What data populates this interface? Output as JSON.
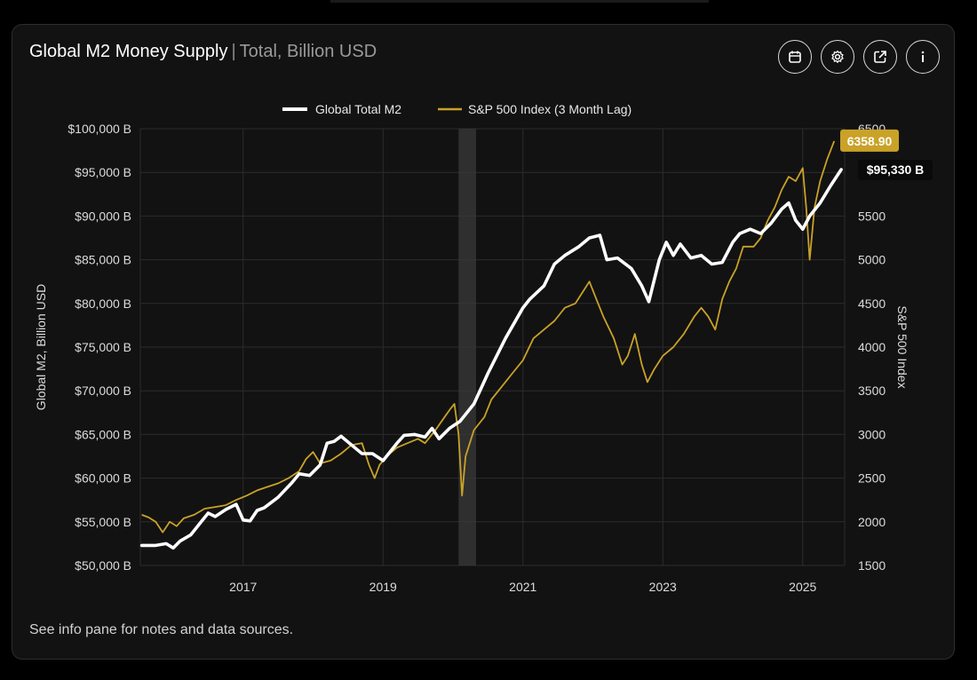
{
  "header": {
    "title": "Global M2 Money Supply",
    "separator": "|",
    "subtitle": "Total, Billion USD"
  },
  "toolbar": {
    "icons": [
      "calendar-icon",
      "gear-icon",
      "external-link-icon",
      "info-icon"
    ]
  },
  "footer": {
    "note": "See info pane for notes and data sources."
  },
  "colors": {
    "m2": "#ffffff",
    "spx": "#c9a227",
    "grid": "#2c2c2c",
    "shade": "#3a3a3a"
  },
  "chart_data": {
    "type": "line",
    "title": "Global M2 Money Supply",
    "subtitle": "Total, Billion USD",
    "ylabel": "Global M2, Billion USD",
    "y2label": "S&P 500 Index",
    "ylim": [
      50000,
      100000
    ],
    "y2lim": [
      1500,
      6500
    ],
    "xlim": [
      2015.53,
      2025.6
    ],
    "legend_position": "top-center",
    "grid": true,
    "x_ticks": [
      {
        "value": 2017,
        "label": "2017"
      },
      {
        "value": 2019,
        "label": "2019"
      },
      {
        "value": 2021,
        "label": "2021"
      },
      {
        "value": 2023,
        "label": "2023"
      },
      {
        "value": 2025,
        "label": "2025"
      }
    ],
    "y_ticks": [
      {
        "value": 50000,
        "label": "$50,000 B"
      },
      {
        "value": 55000,
        "label": "$55,000 B"
      },
      {
        "value": 60000,
        "label": "$60,000 B"
      },
      {
        "value": 65000,
        "label": "$65,000 B"
      },
      {
        "value": 70000,
        "label": "$70,000 B"
      },
      {
        "value": 75000,
        "label": "$75,000 B"
      },
      {
        "value": 80000,
        "label": "$80,000 B"
      },
      {
        "value": 85000,
        "label": "$85,000 B"
      },
      {
        "value": 90000,
        "label": "$90,000 B"
      },
      {
        "value": 95000,
        "label": "$95,000 B"
      },
      {
        "value": 100000,
        "label": "$100,000 B"
      }
    ],
    "y2_ticks": [
      {
        "value": 1500,
        "label": "1500"
      },
      {
        "value": 2000,
        "label": "2000"
      },
      {
        "value": 2500,
        "label": "2500"
      },
      {
        "value": 3000,
        "label": "3000"
      },
      {
        "value": 3500,
        "label": "3500"
      },
      {
        "value": 4000,
        "label": "4000"
      },
      {
        "value": 4500,
        "label": "4500"
      },
      {
        "value": 5000,
        "label": "5000"
      },
      {
        "value": 5500,
        "label": "5500"
      },
      {
        "value": 6000,
        "label": "6000"
      },
      {
        "value": 6500,
        "label": "6500"
      }
    ],
    "shaded_region": {
      "x0": 2020.08,
      "x1": 2020.33
    },
    "series": [
      {
        "name": "Global Total M2",
        "axis": "left",
        "last_label": "$95,330 B",
        "points": [
          [
            2015.55,
            52300
          ],
          [
            2015.75,
            52300
          ],
          [
            2015.9,
            52500
          ],
          [
            2016.0,
            52000
          ],
          [
            2016.1,
            52800
          ],
          [
            2016.25,
            53500
          ],
          [
            2016.4,
            55000
          ],
          [
            2016.5,
            56000
          ],
          [
            2016.6,
            55600
          ],
          [
            2016.75,
            56400
          ],
          [
            2016.9,
            57000
          ],
          [
            2017.0,
            55200
          ],
          [
            2017.1,
            55100
          ],
          [
            2017.2,
            56300
          ],
          [
            2017.3,
            56600
          ],
          [
            2017.5,
            57800
          ],
          [
            2017.7,
            59500
          ],
          [
            2017.8,
            60500
          ],
          [
            2017.95,
            60300
          ],
          [
            2018.1,
            61500
          ],
          [
            2018.2,
            64000
          ],
          [
            2018.3,
            64200
          ],
          [
            2018.4,
            64800
          ],
          [
            2018.55,
            63800
          ],
          [
            2018.7,
            62800
          ],
          [
            2018.85,
            62800
          ],
          [
            2019.0,
            62000
          ],
          [
            2019.1,
            63000
          ],
          [
            2019.2,
            64000
          ],
          [
            2019.3,
            64900
          ],
          [
            2019.45,
            65000
          ],
          [
            2019.6,
            64700
          ],
          [
            2019.7,
            65700
          ],
          [
            2019.8,
            64500
          ],
          [
            2019.95,
            65700
          ],
          [
            2020.1,
            66500
          ],
          [
            2020.2,
            67500
          ],
          [
            2020.3,
            68500
          ],
          [
            2020.5,
            72000
          ],
          [
            2020.75,
            76000
          ],
          [
            2021.0,
            79500
          ],
          [
            2021.1,
            80500
          ],
          [
            2021.3,
            82000
          ],
          [
            2021.45,
            84500
          ],
          [
            2021.6,
            85500
          ],
          [
            2021.8,
            86500
          ],
          [
            2021.95,
            87500
          ],
          [
            2022.1,
            87800
          ],
          [
            2022.2,
            85000
          ],
          [
            2022.35,
            85200
          ],
          [
            2022.55,
            84000
          ],
          [
            2022.7,
            82000
          ],
          [
            2022.8,
            80200
          ],
          [
            2022.95,
            85000
          ],
          [
            2023.05,
            87000
          ],
          [
            2023.15,
            85500
          ],
          [
            2023.25,
            86800
          ],
          [
            2023.4,
            85200
          ],
          [
            2023.55,
            85500
          ],
          [
            2023.7,
            84500
          ],
          [
            2023.85,
            84700
          ],
          [
            2024.0,
            87000
          ],
          [
            2024.1,
            88000
          ],
          [
            2024.25,
            88500
          ],
          [
            2024.4,
            88000
          ],
          [
            2024.55,
            89200
          ],
          [
            2024.7,
            90800
          ],
          [
            2024.8,
            91500
          ],
          [
            2024.9,
            89500
          ],
          [
            2025.0,
            88500
          ],
          [
            2025.1,
            90000
          ],
          [
            2025.25,
            91500
          ],
          [
            2025.4,
            93500
          ],
          [
            2025.55,
            95330
          ]
        ]
      },
      {
        "name": "S&P 500 Index (3 Month Lag)",
        "axis": "right",
        "last_label": "6358.90",
        "points": [
          [
            2015.55,
            2080
          ],
          [
            2015.65,
            2050
          ],
          [
            2015.75,
            2000
          ],
          [
            2015.85,
            1880
          ],
          [
            2015.95,
            2000
          ],
          [
            2016.05,
            1950
          ],
          [
            2016.15,
            2040
          ],
          [
            2016.3,
            2080
          ],
          [
            2016.45,
            2150
          ],
          [
            2016.6,
            2170
          ],
          [
            2016.75,
            2190
          ],
          [
            2016.9,
            2250
          ],
          [
            2017.05,
            2300
          ],
          [
            2017.2,
            2360
          ],
          [
            2017.35,
            2400
          ],
          [
            2017.5,
            2440
          ],
          [
            2017.65,
            2500
          ],
          [
            2017.8,
            2580
          ],
          [
            2017.9,
            2720
          ],
          [
            2018.0,
            2800
          ],
          [
            2018.1,
            2670
          ],
          [
            2018.25,
            2700
          ],
          [
            2018.4,
            2780
          ],
          [
            2018.55,
            2880
          ],
          [
            2018.7,
            2900
          ],
          [
            2018.8,
            2650
          ],
          [
            2018.88,
            2500
          ],
          [
            2018.95,
            2650
          ],
          [
            2019.05,
            2750
          ],
          [
            2019.2,
            2850
          ],
          [
            2019.35,
            2900
          ],
          [
            2019.5,
            2950
          ],
          [
            2019.6,
            2900
          ],
          [
            2019.75,
            3050
          ],
          [
            2019.88,
            3200
          ],
          [
            2019.97,
            3300
          ],
          [
            2020.02,
            3350
          ],
          [
            2020.08,
            3000
          ],
          [
            2020.13,
            2300
          ],
          [
            2020.18,
            2750
          ],
          [
            2020.3,
            3050
          ],
          [
            2020.45,
            3200
          ],
          [
            2020.55,
            3400
          ],
          [
            2020.7,
            3550
          ],
          [
            2020.85,
            3700
          ],
          [
            2021.0,
            3850
          ],
          [
            2021.15,
            4100
          ],
          [
            2021.3,
            4200
          ],
          [
            2021.45,
            4300
          ],
          [
            2021.6,
            4450
          ],
          [
            2021.75,
            4500
          ],
          [
            2021.87,
            4650
          ],
          [
            2021.95,
            4750
          ],
          [
            2022.05,
            4550
          ],
          [
            2022.15,
            4350
          ],
          [
            2022.3,
            4100
          ],
          [
            2022.42,
            3800
          ],
          [
            2022.5,
            3900
          ],
          [
            2022.6,
            4150
          ],
          [
            2022.7,
            3800
          ],
          [
            2022.78,
            3600
          ],
          [
            2022.88,
            3750
          ],
          [
            2023.0,
            3900
          ],
          [
            2023.15,
            4000
          ],
          [
            2023.3,
            4150
          ],
          [
            2023.45,
            4350
          ],
          [
            2023.55,
            4450
          ],
          [
            2023.65,
            4350
          ],
          [
            2023.75,
            4200
          ],
          [
            2023.85,
            4550
          ],
          [
            2023.95,
            4750
          ],
          [
            2024.05,
            4900
          ],
          [
            2024.15,
            5150
          ],
          [
            2024.3,
            5150
          ],
          [
            2024.4,
            5250
          ],
          [
            2024.5,
            5450
          ],
          [
            2024.6,
            5600
          ],
          [
            2024.7,
            5800
          ],
          [
            2024.8,
            5950
          ],
          [
            2024.9,
            5900
          ],
          [
            2025.0,
            6050
          ],
          [
            2025.05,
            5600
          ],
          [
            2025.1,
            5000
          ],
          [
            2025.17,
            5600
          ],
          [
            2025.25,
            5900
          ],
          [
            2025.35,
            6150
          ],
          [
            2025.45,
            6358.9
          ]
        ]
      }
    ]
  }
}
